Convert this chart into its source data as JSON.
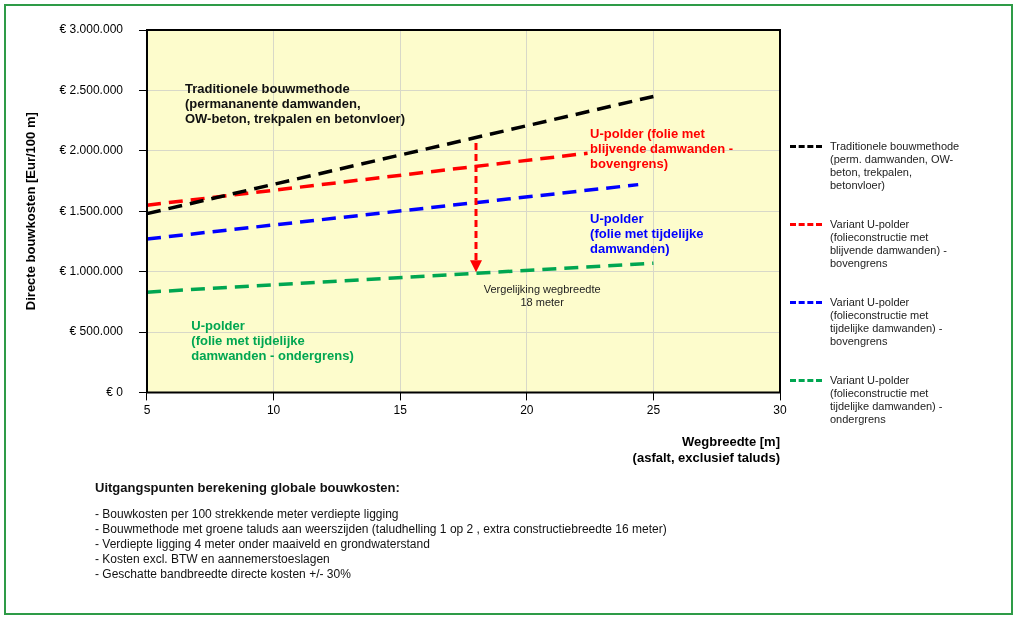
{
  "chart_data": {
    "type": "line",
    "ylabel": "Directe bouwkosten [Eur/100 m]",
    "xlabel": "Wegbreedte [m]\n(asfalt, exclusief taluds)",
    "xlim": [
      5,
      30
    ],
    "xticks": [
      5,
      10,
      15,
      20,
      25,
      30
    ],
    "ylim": [
      0,
      3000000
    ],
    "yticks": [
      {
        "value": 0,
        "label": "€ 0"
      },
      {
        "value": 500000,
        "label": "€ 500.000"
      },
      {
        "value": 1000000,
        "label": "€ 1.000.000"
      },
      {
        "value": 1500000,
        "label": "€ 1.500.000"
      },
      {
        "value": 2000000,
        "label": "€ 2.000.000"
      },
      {
        "value": 2500000,
        "label": "€ 2.500.000"
      },
      {
        "value": 3000000,
        "label": "€ 3.000.000"
      }
    ],
    "grid": true,
    "legend": "right",
    "marker": "none",
    "series": [
      {
        "name": "Traditionele bouwmethode (perm. damwanden, OW-beton, trekpalen, betonvloer)",
        "color": "#000000",
        "line_style": "dashed",
        "x": [
          5,
          25
        ],
        "values": [
          1480000,
          2450000
        ]
      },
      {
        "name": "Variant U-polder (folieconstructie met blijvende damwanden) - bovengrens",
        "color": "#ff0000",
        "line_style": "dashed",
        "x": [
          5,
          22.4
        ],
        "values": [
          1550000,
          1980000
        ]
      },
      {
        "name": "Variant U-polder (folieconstructie met tijdelijke damwanden) - bovengrens",
        "color": "#0000ff",
        "line_style": "dashed",
        "x": [
          5,
          24.4
        ],
        "values": [
          1270000,
          1720000
        ]
      },
      {
        "name": "Variant U-polder (folieconstructie met tijdelijke damwanden) - ondergrens",
        "color": "#00a651",
        "line_style": "dashed",
        "x": [
          5,
          25
        ],
        "values": [
          830000,
          1070000
        ]
      }
    ],
    "annotations": [
      "Traditionele bouwmethode\n(permananente damwanden,\nOW-beton, trekpalen en betonvloer)",
      "U-polder (folie met\nblijvende damwanden -\nbovengrens)",
      "U-polder\n(folie met tijdelijke\ndamwanden)",
      "U-polder\n(folie met tijdelijke\ndamwanden - ondergrens)",
      {
        "text": "Vergelijking wegbreedte\n18 meter",
        "x": 18,
        "y": 990000
      },
      "Uitgangspunten berekening globale bouwkosten:",
      "- Bouwkosten per 100 strekkende meter verdiepte ligging\n- Bouwmethode met groene taluds aan weerszijden (taludhelling 1 op 2 , extra constructiebreedte 16 meter)\n- Verdiepte ligging 4 meter onder maaiveld en grondwaterstand\n- Kosten excl. BTW en aannemerstoeslagen\n- Geschatte bandbreedte directe kosten +/- 30%"
    ]
  }
}
